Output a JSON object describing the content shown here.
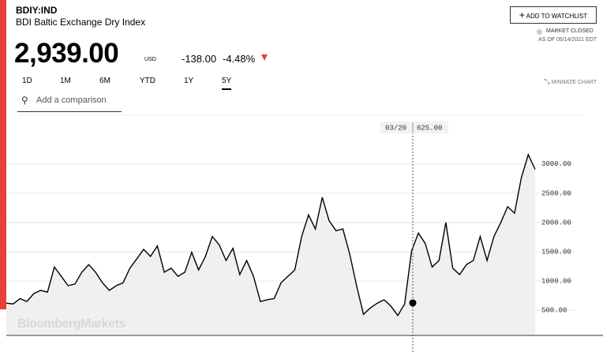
{
  "header": {
    "ticker": "BDIY:IND",
    "name": "BDI Baltic Exchange Dry Index",
    "price": "2,939.00",
    "currency": "USD",
    "change": "-138.00",
    "change_pct": "-4.48%",
    "watchlist_button": "ADD TO WATCHLIST",
    "market_status": "MARKET CLOSED",
    "as_of": "AS OF 05/14/2021 EDT"
  },
  "range_buttons": [
    "1D",
    "1M",
    "6M",
    "YTD",
    "1Y",
    "5Y"
  ],
  "selected_range_index": 5,
  "minimize": "MINIMIZE CHART",
  "comparison_placeholder": "Add a comparison",
  "watermark": "BloombergMarkets",
  "chart_data": {
    "type": "line",
    "color": "#000000",
    "fill": "#f0f0f0",
    "values": [
      620,
      608,
      700,
      650,
      785,
      840,
      810,
      1240,
      1080,
      920,
      950,
      1150,
      1280,
      1150,
      970,
      840,
      920,
      970,
      1220,
      1380,
      1540,
      1420,
      1600,
      1150,
      1220,
      1080,
      1150,
      1490,
      1190,
      1420,
      1760,
      1620,
      1350,
      1560,
      1110,
      1350,
      1080,
      650,
      680,
      700,
      970,
      1080,
      1190,
      1760,
      2130,
      1890,
      2430,
      2030,
      1860,
      1890,
      1460,
      920,
      430,
      540,
      620,
      680,
      570,
      410,
      610,
      1510,
      1820,
      1640,
      1240,
      1350,
      2000,
      1220,
      1110,
      1280,
      1350,
      1760,
      1350,
      1760,
      2000,
      2270,
      2160,
      2770,
      3160,
      2910
    ],
    "ylim": [
      70,
      3780
    ],
    "yticks": [
      {
        "value": 500,
        "label": "500.00"
      },
      {
        "value": 1000,
        "label": "1000.00"
      },
      {
        "value": 1500,
        "label": "1500.00"
      },
      {
        "value": 2000,
        "label": "2000.00"
      },
      {
        "value": 2500,
        "label": "2500.00"
      },
      {
        "value": 3000,
        "label": "3000.00"
      }
    ],
    "grid": true,
    "crosshair": {
      "date": "03/20",
      "value": 625,
      "value_label": "625.00"
    }
  }
}
